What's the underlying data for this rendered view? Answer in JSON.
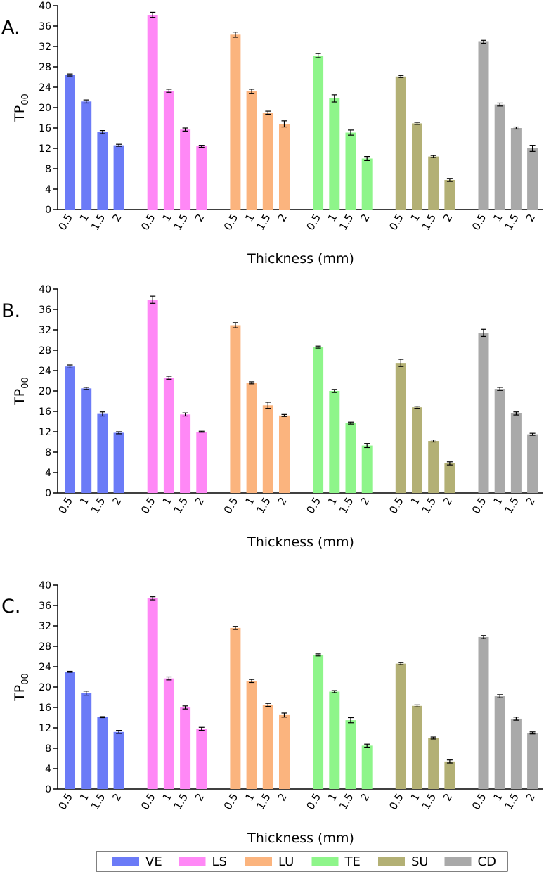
{
  "chart_data": [
    {
      "type": "bar",
      "panel_label": "A.",
      "ylabel_main": "TP",
      "ylabel_sub": "00",
      "xlabel": "Thickness (mm)",
      "ylim": [
        0,
        40
      ],
      "yticks": [
        "0",
        "4",
        "8",
        "12",
        "16",
        "20",
        "24",
        "28",
        "32",
        "36",
        "40"
      ],
      "categories": [
        "0.5",
        "1",
        "1.5",
        "2"
      ],
      "series": [
        {
          "name": "VE",
          "values": [
            26.4,
            21.2,
            15.2,
            12.6
          ],
          "errors": [
            0.2,
            0.3,
            0.3,
            0.2
          ]
        },
        {
          "name": "LS",
          "values": [
            38.2,
            23.3,
            15.7,
            12.4
          ],
          "errors": [
            0.5,
            0.3,
            0.3,
            0.2
          ]
        },
        {
          "name": "LU",
          "values": [
            34.3,
            23.2,
            19.0,
            16.8
          ],
          "errors": [
            0.5,
            0.4,
            0.3,
            0.6
          ]
        },
        {
          "name": "TE",
          "values": [
            30.2,
            21.8,
            15.1,
            10.0
          ],
          "errors": [
            0.4,
            0.7,
            0.5,
            0.4
          ]
        },
        {
          "name": "SU",
          "values": [
            26.1,
            16.9,
            10.4,
            5.8
          ],
          "errors": [
            0.2,
            0.2,
            0.2,
            0.3
          ]
        },
        {
          "name": "CD",
          "values": [
            32.9,
            20.6,
            16.0,
            12.0
          ],
          "errors": [
            0.3,
            0.3,
            0.2,
            0.6
          ]
        }
      ]
    },
    {
      "type": "bar",
      "panel_label": "B.",
      "ylabel_main": "TP",
      "ylabel_sub": "00",
      "xlabel": "Thickness (mm)",
      "ylim": [
        0,
        40
      ],
      "yticks": [
        "0",
        "4",
        "8",
        "12",
        "16",
        "20",
        "24",
        "28",
        "32",
        "36",
        "40"
      ],
      "categories": [
        "0.5",
        "1",
        "1.5",
        "2"
      ],
      "series": [
        {
          "name": "VE",
          "values": [
            24.8,
            20.5,
            15.5,
            11.8
          ],
          "errors": [
            0.3,
            0.2,
            0.4,
            0.2
          ]
        },
        {
          "name": "LS",
          "values": [
            37.9,
            22.6,
            15.4,
            12.0
          ],
          "errors": [
            0.7,
            0.3,
            0.3,
            0.1
          ]
        },
        {
          "name": "LU",
          "values": [
            32.9,
            21.6,
            17.2,
            15.2
          ],
          "errors": [
            0.5,
            0.2,
            0.6,
            0.2
          ]
        },
        {
          "name": "TE",
          "values": [
            28.6,
            20.0,
            13.7,
            9.3
          ],
          "errors": [
            0.2,
            0.3,
            0.2,
            0.4
          ]
        },
        {
          "name": "SU",
          "values": [
            25.5,
            16.8,
            10.2,
            5.8
          ],
          "errors": [
            0.7,
            0.2,
            0.2,
            0.3
          ]
        },
        {
          "name": "CD",
          "values": [
            31.4,
            20.4,
            15.6,
            11.5
          ],
          "errors": [
            0.7,
            0.3,
            0.3,
            0.2
          ]
        }
      ]
    },
    {
      "type": "bar",
      "panel_label": "C.",
      "ylabel_main": "TP",
      "ylabel_sub": "00",
      "xlabel": "Thickness (mm)",
      "ylim": [
        0,
        40
      ],
      "yticks": [
        "0",
        "4",
        "8",
        "12",
        "16",
        "20",
        "24",
        "28",
        "32",
        "36",
        "40"
      ],
      "categories": [
        "0.5",
        "1",
        "1.5",
        "2"
      ],
      "series": [
        {
          "name": "VE",
          "values": [
            23.0,
            18.8,
            14.1,
            11.2
          ],
          "errors": [
            0.1,
            0.4,
            0.1,
            0.3
          ]
        },
        {
          "name": "LS",
          "values": [
            37.4,
            21.7,
            16.0,
            11.8
          ],
          "errors": [
            0.3,
            0.3,
            0.3,
            0.3
          ]
        },
        {
          "name": "LU",
          "values": [
            31.6,
            21.2,
            16.5,
            14.5
          ],
          "errors": [
            0.3,
            0.3,
            0.3,
            0.4
          ]
        },
        {
          "name": "TE",
          "values": [
            26.3,
            19.1,
            13.5,
            8.5
          ],
          "errors": [
            0.2,
            0.2,
            0.5,
            0.3
          ]
        },
        {
          "name": "SU",
          "values": [
            24.6,
            16.3,
            10.0,
            5.4
          ],
          "errors": [
            0.2,
            0.2,
            0.2,
            0.3
          ]
        },
        {
          "name": "CD",
          "values": [
            29.8,
            18.2,
            13.8,
            11.0
          ],
          "errors": [
            0.3,
            0.3,
            0.3,
            0.2
          ]
        }
      ]
    }
  ],
  "legend": [
    {
      "label": "VE",
      "color": "#6B7BF7"
    },
    {
      "label": "LS",
      "color": "#FF88F6"
    },
    {
      "label": "LU",
      "color": "#FBB47E"
    },
    {
      "label": "TE",
      "color": "#8EF58A"
    },
    {
      "label": "SU",
      "color": "#B3B075"
    },
    {
      "label": "CD",
      "color": "#A9A9A9"
    }
  ]
}
